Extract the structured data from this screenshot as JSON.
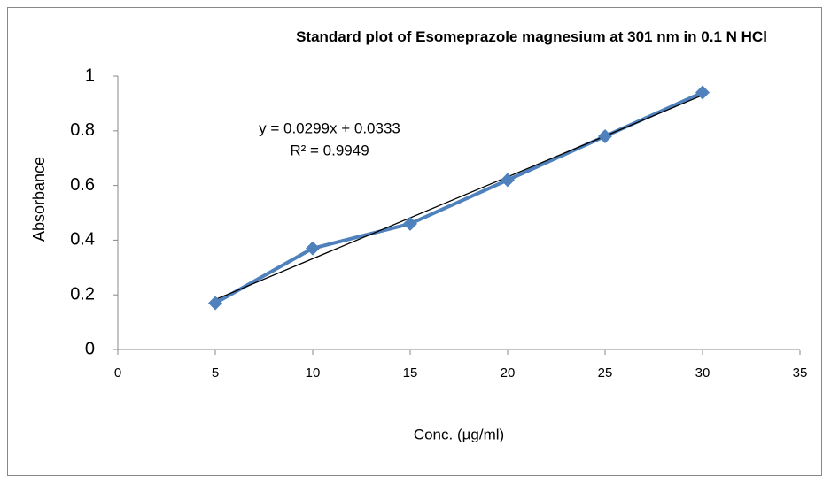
{
  "chart_data": {
    "type": "scatter-line",
    "title": "Standard plot of Esomeprazole magnesium at 301 nm in 0.1 N HCl",
    "x_label": "Conc. (µg/ml)",
    "y_label": "Absorbance",
    "x": [
      5,
      10,
      15,
      20,
      25,
      30
    ],
    "series": [
      {
        "name": "Absorbance",
        "color": "#4f81bd",
        "values": [
          0.17,
          0.37,
          0.46,
          0.62,
          0.78,
          0.94
        ]
      }
    ],
    "trendline": {
      "slope": 0.0299,
      "intercept": 0.0333,
      "color": "#000000",
      "equation": "y = 0.0299x + 0.0333",
      "r_squared": "R² = 0.9949"
    },
    "xlim": [
      0,
      35
    ],
    "xticks": [
      0,
      5,
      10,
      15,
      20,
      25,
      30,
      35
    ],
    "ylim": [
      0,
      1
    ],
    "yticks": [
      0,
      0.2,
      0.4,
      0.6,
      0.8,
      1
    ],
    "grid": false,
    "legend": false
  }
}
